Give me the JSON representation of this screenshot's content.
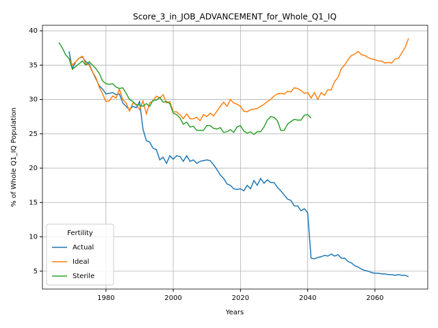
{
  "chart_data": {
    "type": "line",
    "title": "Score_3_in_JOB_ADVANCEMENT_for_Whole_Q1_IQ",
    "x_label": "Years",
    "y_label": "% of Whole Q1_IQ Population",
    "legend_title": "Fertility",
    "legend_position": "lower left",
    "grid": true,
    "xlim": [
      1961.1,
      2075.7
    ],
    "ylim": [
      2.4,
      40.8
    ],
    "xticks": [
      1980,
      2000,
      2020,
      2040,
      2060
    ],
    "yticks": [
      5,
      10,
      15,
      20,
      25,
      30,
      35,
      40
    ],
    "x": [
      1966,
      1967,
      1968,
      1969,
      1970,
      1971,
      1972,
      1973,
      1974,
      1975,
      1976,
      1977,
      1978,
      1979,
      1980,
      1981,
      1982,
      1983,
      1984,
      1985,
      1986,
      1987,
      1988,
      1989,
      1990,
      1991,
      1992,
      1993,
      1994,
      1995,
      1996,
      1997,
      1998,
      1999,
      2000,
      2001,
      2002,
      2003,
      2004,
      2005,
      2006,
      2007,
      2008,
      2009,
      2010,
      2011,
      2012,
      2013,
      2014,
      2015,
      2016,
      2017,
      2018,
      2019,
      2020,
      2021,
      2022,
      2023,
      2024,
      2025,
      2026,
      2027,
      2028,
      2029,
      2030,
      2031,
      2032,
      2033,
      2034,
      2035,
      2036,
      2037,
      2038,
      2039,
      2040,
      2041,
      2042,
      2043,
      2044,
      2045,
      2046,
      2047,
      2048,
      2049,
      2050,
      2051,
      2052,
      2053,
      2054,
      2055,
      2056,
      2057,
      2058,
      2059,
      2060,
      2061,
      2062,
      2063,
      2064,
      2065,
      2066,
      2067,
      2068,
      2069,
      2070
    ],
    "series": [
      {
        "name": "Actual",
        "color": "#1f77b4",
        "values": [
          null,
          null,
          null,
          37.0,
          34.5,
          35.5,
          36.0,
          36.2,
          35.5,
          35.2,
          34.0,
          33.0,
          32.0,
          31.5,
          30.8,
          30.9,
          31.0,
          30.7,
          30.8,
          29.5,
          29.0,
          28.5,
          29.0,
          28.8,
          29.7,
          25.7,
          24.0,
          23.8,
          22.9,
          22.7,
          21.2,
          21.6,
          20.7,
          21.8,
          21.3,
          21.8,
          21.7,
          21.0,
          21.8,
          21.0,
          21.2,
          20.7,
          21.0,
          21.1,
          21.2,
          21.1,
          20.5,
          19.8,
          19.0,
          18.5,
          17.7,
          17.5,
          17.0,
          16.9,
          17.0,
          16.7,
          17.5,
          17.0,
          18.2,
          17.5,
          18.5,
          17.8,
          18.3,
          17.9,
          17.9,
          17.2,
          16.7,
          16.1,
          15.5,
          15.3,
          14.5,
          14.5,
          13.8,
          14.1,
          13.5,
          6.9,
          6.8,
          7.0,
          7.1,
          7.3,
          7.2,
          7.5,
          7.2,
          7.4,
          6.9,
          6.9,
          6.4,
          6.2,
          5.8,
          5.6,
          5.3,
          5.1,
          5.0,
          4.8,
          4.7,
          4.7,
          4.6,
          4.6,
          4.5,
          4.5,
          4.4,
          4.5,
          4.4,
          4.4,
          4.2
        ]
      },
      {
        "name": "Ideal",
        "color": "#ff7f0e",
        "values": [
          null,
          null,
          null,
          36.0,
          35.0,
          35.5,
          36.0,
          36.3,
          35.2,
          35.0,
          34.0,
          33.2,
          31.8,
          30.8,
          29.7,
          29.8,
          30.5,
          30.2,
          31.5,
          30.0,
          29.5,
          28.3,
          29.5,
          29.3,
          28.5,
          29.8,
          27.9,
          29.5,
          29.8,
          30.5,
          30.2,
          30.7,
          29.5,
          29.7,
          28.2,
          28.2,
          27.8,
          27.2,
          27.9,
          27.2,
          27.2,
          27.4,
          26.9,
          27.8,
          27.5,
          28.0,
          27.6,
          28.3,
          29.0,
          29.6,
          29.0,
          30.0,
          29.5,
          29.3,
          29.0,
          28.3,
          28.2,
          28.5,
          28.6,
          28.7,
          29.0,
          29.3,
          29.7,
          30.0,
          30.5,
          30.8,
          30.9,
          30.8,
          31.2,
          31.1,
          31.7,
          31.6,
          31.3,
          30.9,
          31.0,
          30.2,
          31.0,
          30.0,
          31.0,
          30.6,
          31.4,
          31.4,
          32.6,
          33.2,
          34.5,
          35.0,
          35.8,
          36.4,
          36.6,
          37.0,
          36.5,
          36.4,
          36.1,
          35.9,
          35.8,
          35.6,
          35.6,
          35.3,
          35.4,
          35.3,
          35.9,
          36.0,
          36.8,
          37.6,
          38.9
        ]
      },
      {
        "name": "Sterile",
        "color": "#2ca02c",
        "values": [
          38.3,
          37.5,
          36.5,
          36.0,
          34.4,
          34.8,
          35.2,
          35.6,
          35.0,
          35.5,
          35.0,
          34.5,
          33.8,
          32.7,
          32.3,
          32.2,
          32.3,
          31.8,
          31.6,
          31.7,
          30.9,
          30.0,
          29.7,
          29.2,
          29.2,
          29.0,
          29.4,
          29.0,
          29.9,
          29.9,
          30.3,
          29.6,
          29.7,
          29.4,
          28.0,
          27.8,
          27.3,
          26.4,
          26.7,
          26.0,
          26.1,
          25.5,
          25.5,
          25.5,
          26.2,
          26.2,
          25.8,
          25.7,
          25.9,
          25.2,
          25.3,
          25.6,
          25.2,
          26.0,
          26.2,
          25.4,
          25.1,
          25.3,
          24.9,
          25.3,
          25.3,
          26.0,
          27.0,
          27.5,
          27.4,
          26.9,
          25.5,
          25.5,
          26.4,
          26.8,
          27.1,
          27.0,
          27.0,
          27.7,
          27.8,
          27.3,
          null,
          null,
          null,
          null,
          null,
          null,
          null,
          null,
          null,
          null,
          null,
          null,
          null,
          null,
          null,
          null,
          null,
          null,
          null,
          null,
          null,
          null,
          null,
          null,
          null,
          null,
          null,
          null,
          null
        ]
      }
    ]
  }
}
